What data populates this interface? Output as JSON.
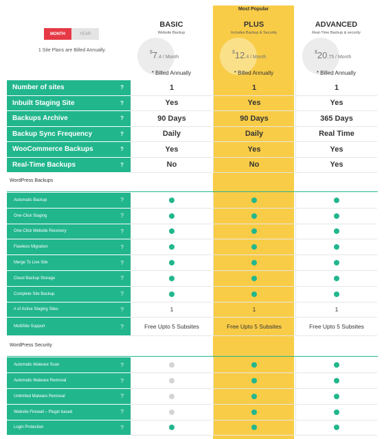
{
  "toggle": [
    "MONTH",
    "YEAR"
  ],
  "note": "1 Site Plans are Billed Annually.",
  "badge": "Most Popular",
  "help": "?",
  "plans": [
    {
      "name": "BASIC",
      "subtitle": "Website Backup",
      "currency": "$",
      "whole": "7",
      "fraction": ".4 / Month",
      "billing": "* Billed Annually"
    },
    {
      "name": "PLUS",
      "subtitle": "Includes Backup & Security",
      "currency": "$",
      "whole": "12",
      "fraction": ".4 / Month",
      "billing": "* Billed Annually"
    },
    {
      "name": "ADVANCED",
      "subtitle": "Real-Time Backup & security",
      "currency": "$",
      "whole": "20",
      "fraction": ".75 / Month",
      "billing": "* Billed Annually"
    }
  ],
  "features": [
    {
      "label": "Number of sites",
      "values": [
        "1",
        "1",
        "1"
      ]
    },
    {
      "label": "Inbuilt Staging Site",
      "values": [
        "Yes",
        "Yes",
        "Yes"
      ]
    },
    {
      "label": "Backups Archive",
      "values": [
        "90 Days",
        "90 Days",
        "365 Days"
      ]
    },
    {
      "label": "Backup Sync Frequency",
      "values": [
        "Daily",
        "Daily",
        "Real Time"
      ]
    },
    {
      "label": "WooCommerce Backups",
      "values": [
        "Yes",
        "Yes",
        "Yes"
      ]
    },
    {
      "label": "Real-Time Backups",
      "values": [
        "No",
        "No",
        "Yes"
      ]
    }
  ],
  "sections": [
    {
      "title": "WordPress Backups",
      "rows": [
        {
          "label": "Automatic Backup",
          "values": [
            true,
            true,
            true
          ]
        },
        {
          "label": "One-Click Staging",
          "values": [
            true,
            true,
            true
          ]
        },
        {
          "label": "One-Click Website Recovery",
          "values": [
            true,
            true,
            true
          ]
        },
        {
          "label": "Flawless Migration",
          "values": [
            true,
            true,
            true
          ]
        },
        {
          "label": "Merge To Live Site",
          "values": [
            true,
            true,
            true
          ]
        },
        {
          "label": "Cloud Backup Storage",
          "values": [
            true,
            true,
            true
          ]
        },
        {
          "label": "Complete Site Backup",
          "values": [
            true,
            true,
            true
          ]
        },
        {
          "label": "# of Active Staging Sites",
          "values": [
            "1",
            "1",
            "1"
          ]
        },
        {
          "label": "MultiSite Support",
          "values": [
            "Free Upto 5 Subsites",
            "Free Upto 5 Subsites",
            "Free Upto 5 Subsites"
          ]
        }
      ]
    },
    {
      "title": "WordPress Security",
      "rows": [
        {
          "label": "Automatic Malware Scan",
          "values": [
            false,
            true,
            true
          ]
        },
        {
          "label": "Automatic Malware Removal",
          "values": [
            false,
            true,
            true
          ]
        },
        {
          "label": "Unlimited Malware Removal",
          "values": [
            false,
            true,
            true
          ]
        },
        {
          "label": "Website Firewall – Plugin based",
          "values": [
            false,
            true,
            true
          ]
        },
        {
          "label": "Login Protection",
          "values": [
            true,
            true,
            true
          ]
        }
      ]
    }
  ]
}
